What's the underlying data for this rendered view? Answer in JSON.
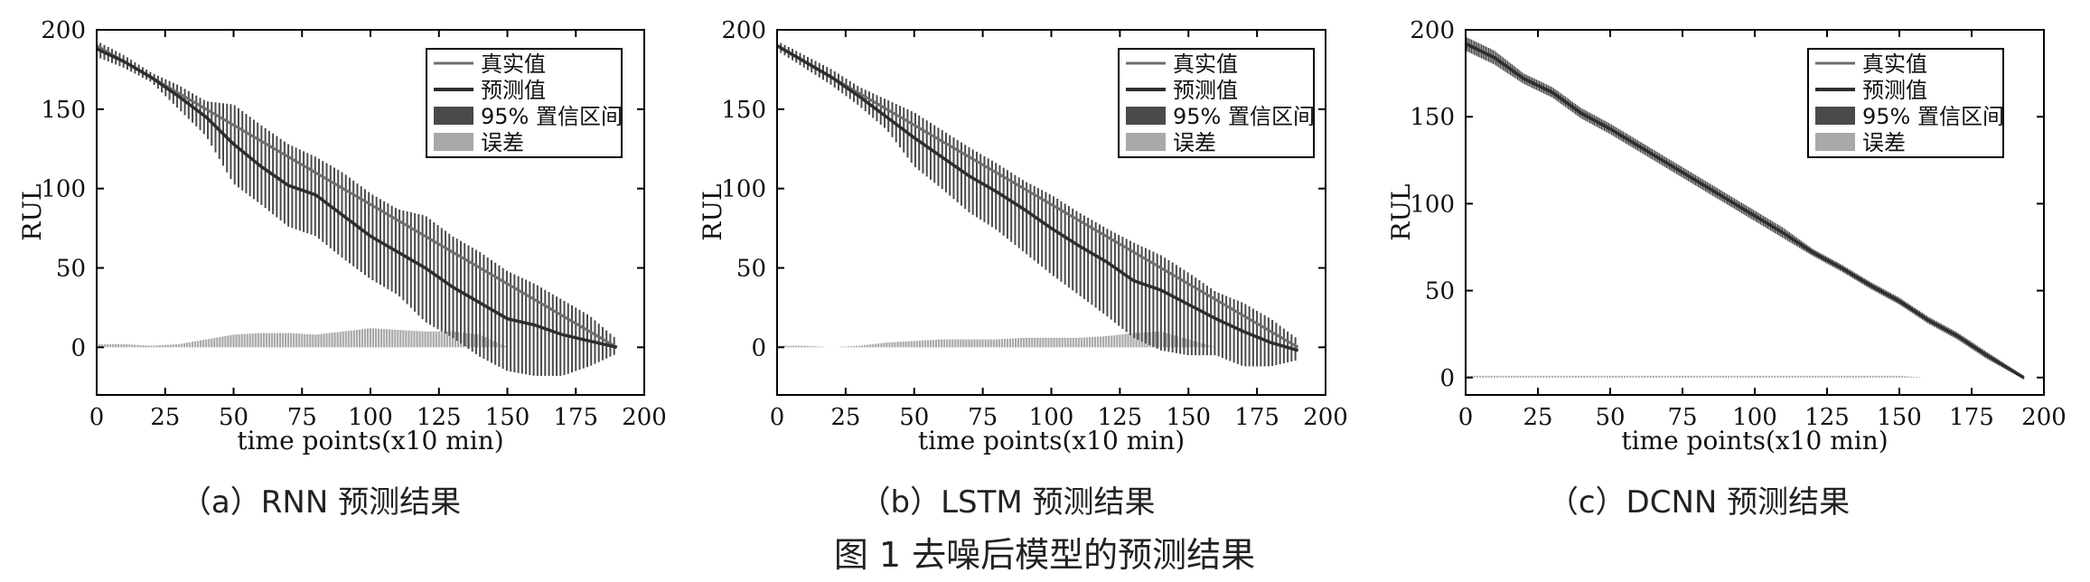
{
  "figure_caption": "图 1   去噪后模型的预测结果",
  "legend_labels": [
    "真实值",
    "预测值",
    "95% 置信区间",
    "误差"
  ],
  "colors": {
    "true": "#6e6e6e",
    "pred": "#2e2e2e",
    "ci": "#4a4a4a",
    "err": "#a9a9a9"
  },
  "chart_data": [
    {
      "type": "line",
      "caption": "（a）RNN 预测结果",
      "xlabel": "time points(x10 min)",
      "ylabel": "RUL",
      "xlim": [
        0,
        200
      ],
      "ylim": [
        -30,
        200
      ],
      "xticks": [
        0,
        25,
        50,
        75,
        100,
        125,
        150,
        175,
        200
      ],
      "yticks": [
        0,
        50,
        100,
        150,
        200
      ],
      "legend": "top-right",
      "series": [
        {
          "name": "真实值",
          "x": [
            0,
            190
          ],
          "y": [
            190,
            0
          ]
        },
        {
          "name": "预测值",
          "x": [
            0,
            10,
            20,
            30,
            40,
            50,
            60,
            70,
            80,
            90,
            100,
            110,
            120,
            130,
            140,
            150,
            160,
            170,
            180,
            190
          ],
          "y": [
            188,
            180,
            170,
            158,
            145,
            128,
            114,
            102,
            96,
            83,
            70,
            60,
            50,
            38,
            28,
            18,
            14,
            8,
            4,
            0
          ]
        },
        {
          "name": "95% 置信区间",
          "x": [
            0,
            10,
            20,
            30,
            40,
            50,
            60,
            70,
            80,
            90,
            100,
            110,
            120,
            130,
            140,
            150,
            160,
            170,
            180,
            190
          ],
          "lower": [
            183,
            176,
            167,
            150,
            133,
            103,
            90,
            76,
            70,
            56,
            43,
            33,
            16,
            6,
            -6,
            -15,
            -18,
            -18,
            -12,
            -4
          ],
          "upper": [
            193,
            184,
            173,
            165,
            155,
            153,
            140,
            128,
            120,
            110,
            97,
            87,
            83,
            70,
            60,
            48,
            40,
            30,
            20,
            5
          ]
        },
        {
          "name": "误差",
          "x": [
            0,
            10,
            20,
            30,
            40,
            50,
            60,
            70,
            80,
            90,
            100,
            110,
            120,
            130,
            140,
            150,
            160,
            170,
            180,
            190
          ],
          "y": [
            2,
            2,
            1,
            2,
            5,
            8,
            9,
            9,
            8,
            10,
            12,
            11,
            10,
            10,
            8,
            0,
            0,
            0,
            0,
            0
          ]
        }
      ]
    },
    {
      "type": "line",
      "caption": "（b）LSTM 预测结果",
      "xlabel": "time points(x10 min)",
      "ylabel": "RUL",
      "xlim": [
        0,
        200
      ],
      "ylim": [
        -30,
        200
      ],
      "xticks": [
        0,
        25,
        50,
        75,
        100,
        125,
        150,
        175,
        200
      ],
      "yticks": [
        0,
        50,
        100,
        150,
        200
      ],
      "legend": "top-right",
      "series": [
        {
          "name": "真实值",
          "x": [
            0,
            190
          ],
          "y": [
            190,
            0
          ]
        },
        {
          "name": "预测值",
          "x": [
            0,
            10,
            20,
            30,
            40,
            50,
            60,
            70,
            80,
            90,
            100,
            110,
            120,
            130,
            140,
            150,
            160,
            170,
            180,
            190
          ],
          "y": [
            190,
            180,
            170,
            158,
            145,
            132,
            120,
            108,
            98,
            87,
            75,
            64,
            54,
            42,
            36,
            27,
            18,
            10,
            3,
            -2
          ]
        },
        {
          "name": "95% 置信区间",
          "x": [
            0,
            10,
            20,
            30,
            40,
            50,
            60,
            70,
            80,
            90,
            100,
            110,
            120,
            130,
            140,
            150,
            160,
            170,
            180,
            190
          ],
          "lower": [
            187,
            176,
            165,
            152,
            137,
            114,
            100,
            85,
            74,
            60,
            46,
            33,
            20,
            6,
            -2,
            -5,
            -5,
            -12,
            -12,
            -8
          ],
          "upper": [
            193,
            184,
            175,
            164,
            156,
            148,
            137,
            126,
            116,
            105,
            96,
            85,
            75,
            66,
            58,
            47,
            35,
            28,
            18,
            5
          ]
        },
        {
          "name": "误差",
          "x": [
            0,
            10,
            20,
            30,
            40,
            50,
            60,
            70,
            80,
            90,
            100,
            110,
            120,
            130,
            140,
            150,
            160,
            170,
            180,
            190
          ],
          "y": [
            1,
            1,
            0,
            1,
            3,
            4,
            5,
            5,
            5,
            6,
            6,
            6,
            7,
            9,
            10,
            5,
            0,
            0,
            0,
            0
          ]
        }
      ]
    },
    {
      "type": "line",
      "caption": "（c）DCNN 预测结果",
      "xlabel": "time points(x10 min)",
      "ylabel": "RUL",
      "xlim": [
        0,
        200
      ],
      "ylim": [
        -10,
        200
      ],
      "xticks": [
        0,
        25,
        50,
        75,
        100,
        125,
        150,
        175,
        200
      ],
      "yticks": [
        0,
        50,
        100,
        150,
        200
      ],
      "legend": "top-right",
      "series": [
        {
          "name": "真实值",
          "x": [
            0,
            193
          ],
          "y": [
            193,
            0
          ]
        },
        {
          "name": "预测值",
          "x": [
            0,
            10,
            20,
            30,
            40,
            50,
            60,
            70,
            80,
            90,
            100,
            110,
            120,
            130,
            140,
            150,
            160,
            170,
            180,
            193
          ],
          "y": [
            192,
            184,
            172,
            164,
            152,
            143,
            133,
            123,
            113,
            103,
            93,
            83,
            72,
            63,
            53,
            44,
            33,
            24,
            13,
            0
          ]
        },
        {
          "name": "95% 置信区间",
          "x": [
            0,
            10,
            20,
            30,
            40,
            50,
            60,
            70,
            80,
            90,
            100,
            110,
            120,
            130,
            140,
            150,
            160,
            170,
            180,
            193
          ],
          "lower": [
            188,
            180,
            169,
            161,
            149,
            140,
            130,
            120,
            110,
            100,
            90,
            80,
            70,
            61,
            51,
            42,
            31,
            22,
            11,
            -1
          ],
          "upper": [
            196,
            188,
            175,
            167,
            155,
            146,
            136,
            126,
            116,
            106,
            96,
            86,
            74,
            65,
            55,
            46,
            35,
            26,
            15,
            1
          ]
        },
        {
          "name": "误差",
          "x": [
            0,
            10,
            20,
            30,
            40,
            50,
            60,
            70,
            80,
            90,
            100,
            110,
            120,
            130,
            140,
            150,
            160,
            170,
            180,
            193
          ],
          "y": [
            1,
            1,
            1,
            1,
            1,
            1,
            1,
            1,
            1,
            1,
            1,
            1,
            1,
            1,
            1,
            1,
            0,
            0,
            0,
            0
          ]
        }
      ]
    }
  ]
}
